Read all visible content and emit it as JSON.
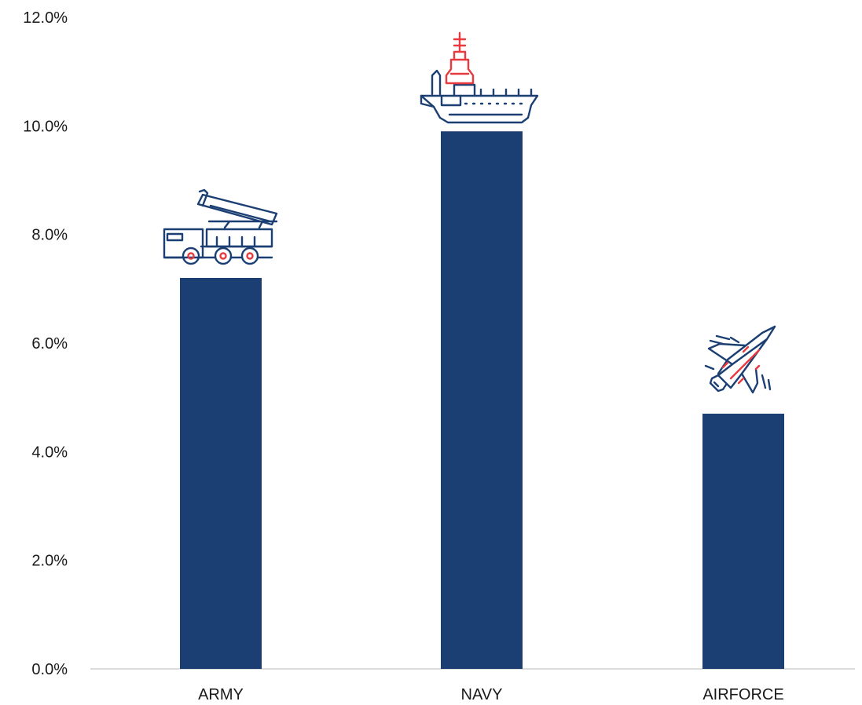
{
  "colors": {
    "bar": "#1b3f73",
    "icon_primary": "#1b3f73",
    "icon_accent": "#e83a3f",
    "axis": "#d0d0d0"
  },
  "chart_data": {
    "type": "bar",
    "title": "",
    "xlabel": "",
    "ylabel": "",
    "categories": [
      "ARMY",
      "NAVY",
      "AIRFORCE"
    ],
    "values": [
      7.2,
      9.9,
      4.7
    ],
    "ylim": [
      0,
      12
    ],
    "yticks": [
      0,
      2,
      4,
      6,
      8,
      10,
      12
    ],
    "ytick_labels": [
      "0.0%",
      "2.0%",
      "4.0%",
      "6.0%",
      "8.0%",
      "10.0%",
      "12.0%"
    ],
    "grid": false,
    "legend": "none",
    "bar_icons": [
      "missile-launcher-truck-icon",
      "aircraft-carrier-icon",
      "fighter-jet-icon"
    ]
  }
}
